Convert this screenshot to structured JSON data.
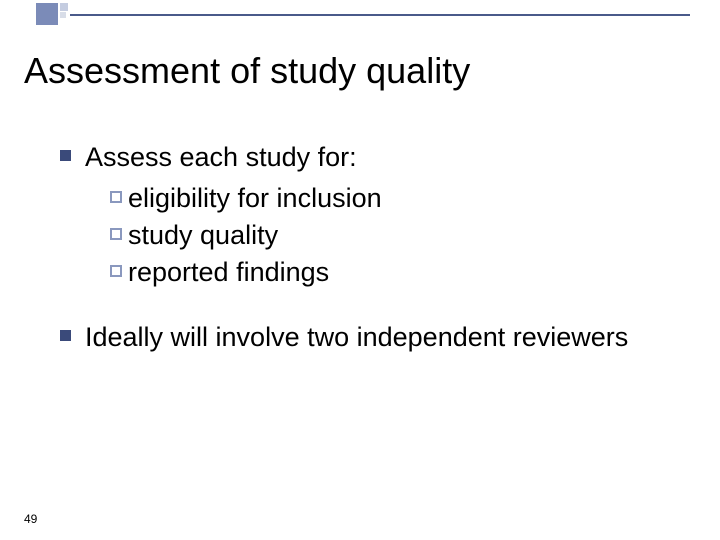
{
  "slide": {
    "title": "Assessment of study quality",
    "page_number": "49",
    "bullets": [
      {
        "text": "Assess each study for:",
        "subitems": [
          "eligibility for inclusion",
          "study quality",
          "reported findings"
        ]
      },
      {
        "text": "Ideally will involve two independent reviewers",
        "subitems": []
      }
    ]
  },
  "style": {
    "background_color": "#ffffff",
    "title_color": "#000000",
    "title_fontsize": 36,
    "body_color": "#000000",
    "body_fontsize": 27,
    "bullet_fill_color": "#3a4a7a",
    "sub_bullet_border_color": "#8a98be",
    "deco_line_color": "#4a5a8a",
    "deco_square_color": "#7b8bb8",
    "deco_small_square_color": "#c4cce0",
    "page_number_fontsize": 12
  }
}
